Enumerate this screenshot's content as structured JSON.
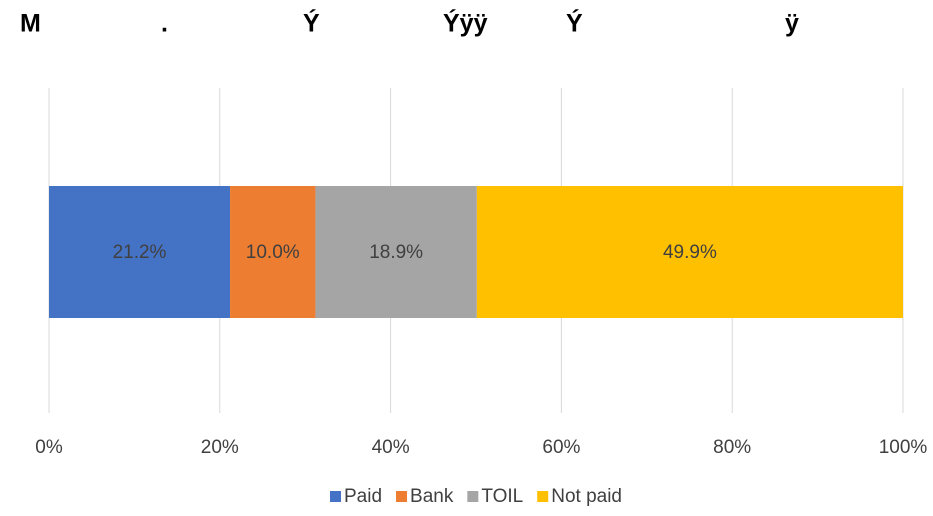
{
  "chart_data": {
    "type": "stacked_bar_horizontal",
    "title": [
      "M",
      ".",
      "Ý",
      "Ýÿÿ",
      "Ý",
      "ÿ"
    ],
    "categories": [
      null
    ],
    "series": [
      {
        "name": "Paid",
        "color": "#4472c4",
        "values": [
          21.2
        ],
        "value_labels": [
          "21.2%"
        ]
      },
      {
        "name": "Bank",
        "color": "#ed7d31",
        "values": [
          10.0
        ],
        "value_labels": [
          "10.0%"
        ]
      },
      {
        "name": "TOIL",
        "color": "#a5a5a5",
        "values": [
          18.9
        ],
        "value_labels": [
          "18.9%"
        ]
      },
      {
        "name": "Not paid",
        "color": "#ffc000",
        "values": [
          49.9
        ],
        "value_labels": [
          "49.9%"
        ]
      }
    ],
    "xlim": [
      0,
      100
    ],
    "xticks": [
      {
        "value": 0,
        "label": "0%"
      },
      {
        "value": 20,
        "label": "20%"
      },
      {
        "value": 40,
        "label": "40%"
      },
      {
        "value": 60,
        "label": "60%"
      },
      {
        "value": 80,
        "label": "80%"
      },
      {
        "value": 100,
        "label": "100%"
      }
    ],
    "grid": true,
    "legend": "bottom"
  }
}
